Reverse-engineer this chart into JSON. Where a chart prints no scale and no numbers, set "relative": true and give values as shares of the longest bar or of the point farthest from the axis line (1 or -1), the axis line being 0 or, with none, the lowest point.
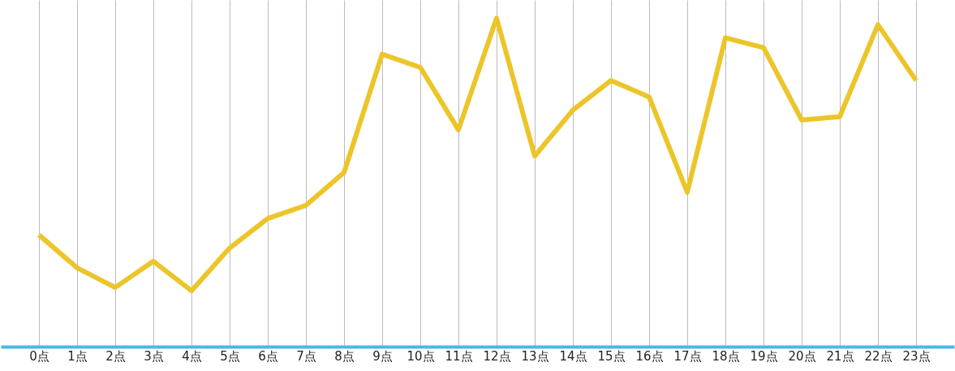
{
  "chart_data": {
    "type": "line",
    "relative": true,
    "grid": "x",
    "categories": [
      "0点",
      "1点",
      "2点",
      "3点",
      "4点",
      "5点",
      "6点",
      "7点",
      "8点",
      "9点",
      "10点",
      "11点",
      "12点",
      "13点",
      "14点",
      "15点",
      "16点",
      "17点",
      "18点",
      "19点",
      "20点",
      "21点",
      "22点",
      "23点"
    ],
    "series": [
      {
        "color": "#ecc52a",
        "values": [
          0.34,
          0.24,
          0.18,
          0.26,
          0.17,
          0.3,
          0.39,
          0.43,
          0.53,
          0.89,
          0.85,
          0.66,
          1,
          0.58,
          0.72,
          0.81,
          0.76,
          0.47,
          0.94,
          0.91,
          0.69,
          0.7,
          0.98,
          0.81
        ]
      }
    ]
  }
}
